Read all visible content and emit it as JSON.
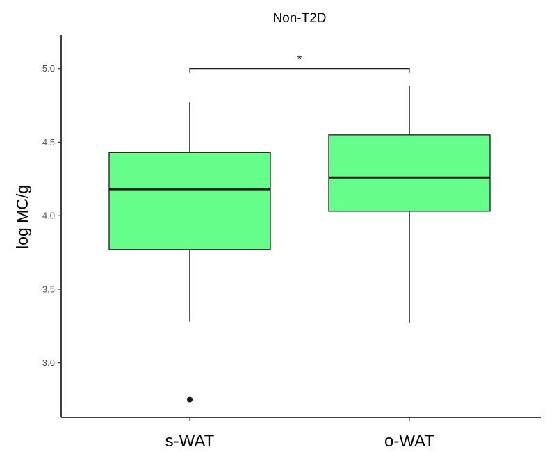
{
  "chart_data": {
    "type": "box",
    "title": "Non-T2D",
    "xlabel": "",
    "ylabel": "log MC/g",
    "categories": [
      "s-WAT",
      "o-WAT"
    ],
    "boxes": [
      {
        "category": "s-WAT",
        "whisker_low": 3.28,
        "q1": 3.77,
        "median": 4.18,
        "q3": 4.43,
        "whisker_high": 4.77,
        "outliers": [
          2.75
        ]
      },
      {
        "category": "o-WAT",
        "whisker_low": 3.27,
        "q1": 4.03,
        "median": 4.26,
        "q3": 4.55,
        "whisker_high": 4.88,
        "outliers": []
      }
    ],
    "ylim": [
      2.63,
      5.23
    ],
    "yticks": [
      "3.0",
      "3.5",
      "4.0",
      "4.5",
      "5.0"
    ],
    "significance": {
      "from": "s-WAT",
      "to": "o-WAT",
      "y": 5.0,
      "label": "*"
    },
    "fill_color": "#66ff8c",
    "grid": false
  }
}
